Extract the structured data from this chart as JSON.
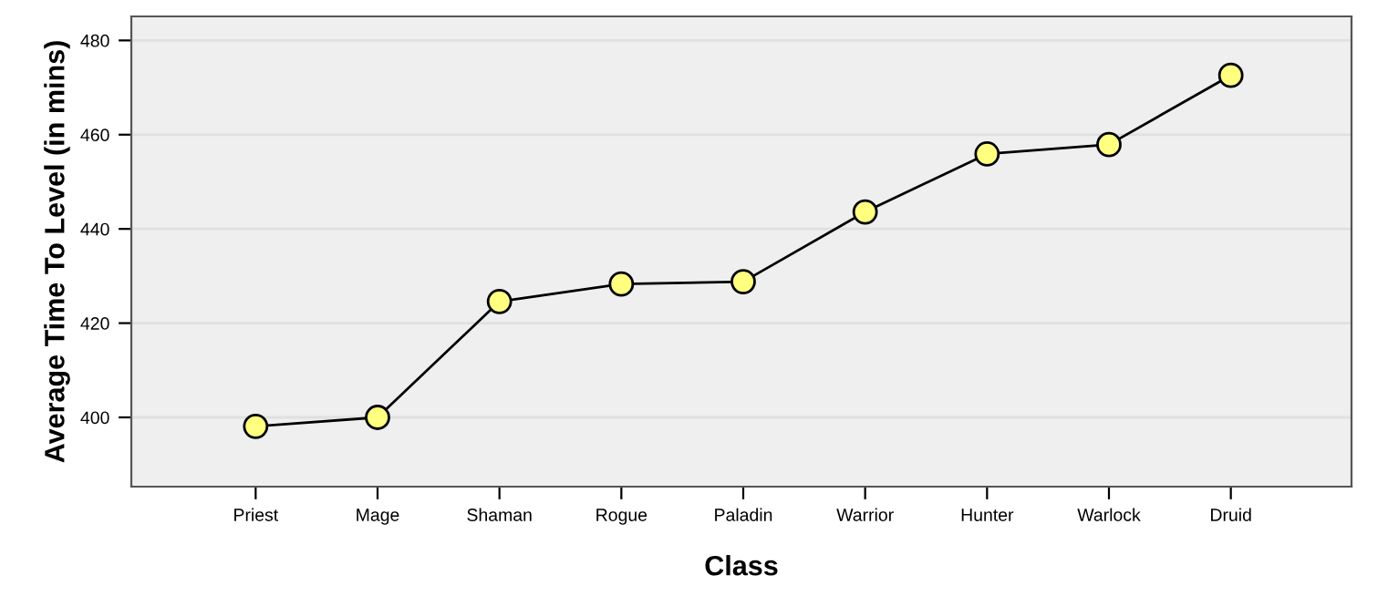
{
  "chart_data": {
    "type": "line",
    "xlabel": "Class",
    "ylabel": "Average Time To Level (in mins)",
    "categories": [
      "Priest",
      "Mage",
      "Shaman",
      "Rogue",
      "Paladin",
      "Warrior",
      "Hunter",
      "Warlock",
      "Druid"
    ],
    "series": [
      {
        "color": "#000000",
        "values": [
          398.1,
          400.0,
          424.6,
          428.3,
          428.8,
          443.6,
          455.9,
          457.9,
          472.6
        ]
      }
    ],
    "ylim": [
      385.3,
      485.1
    ],
    "yticks": [
      400,
      420,
      440,
      460,
      480
    ],
    "grid": "y",
    "marker": "circle",
    "line_style": "solid"
  }
}
